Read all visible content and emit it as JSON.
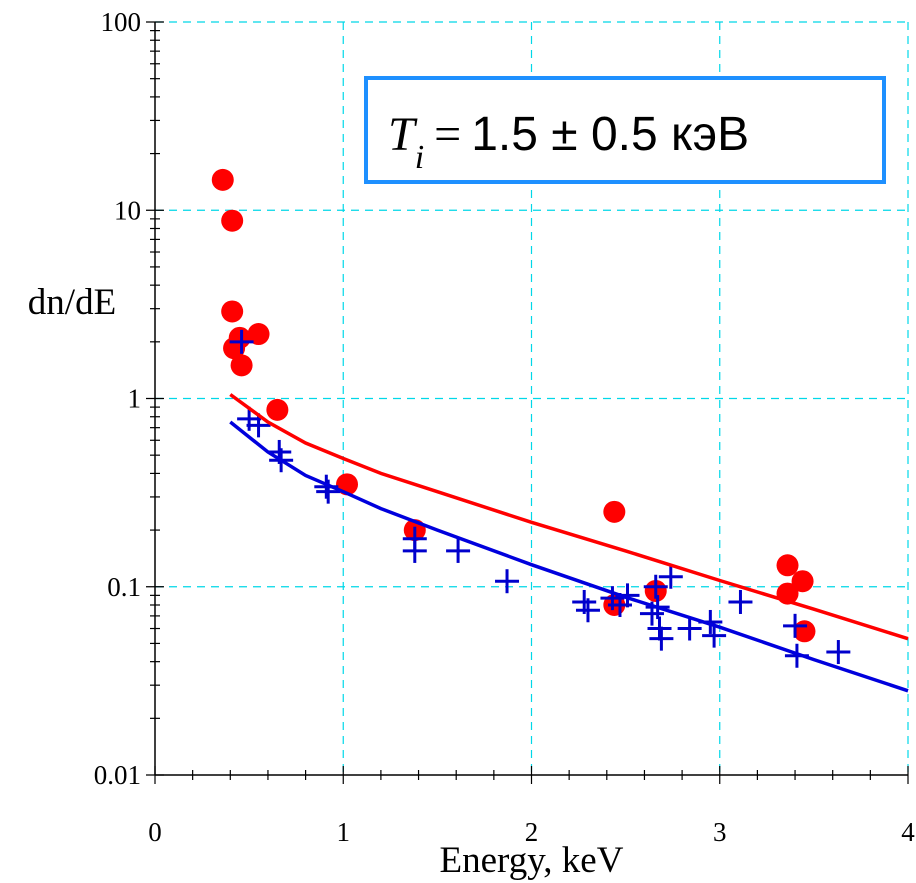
{
  "chart_data": {
    "type": "scatter",
    "xlabel": "Energy, keV",
    "ylabel": "dn/dE",
    "xlim": [
      0,
      4
    ],
    "ylim": [
      0.01,
      100
    ],
    "yscale": "log",
    "x_ticks": [
      0,
      1,
      2,
      3,
      4
    ],
    "x_tick_labels": [
      "0",
      "1",
      "2",
      "3",
      "4"
    ],
    "y_ticks": [
      0.01,
      0.1,
      1,
      10,
      100
    ],
    "y_tick_labels": [
      "0.01",
      "0.1",
      "1",
      "10",
      "100"
    ],
    "grid": true,
    "annotation": {
      "symbol": "T",
      "subscript": "i",
      "equals": "=",
      "value_text": "1.5 ± 0.5 кэВ"
    },
    "series": [
      {
        "marker": "circle",
        "color": "#ff0000",
        "points": [
          [
            0.36,
            14.5
          ],
          [
            0.41,
            8.8
          ],
          [
            0.41,
            2.9
          ],
          [
            0.42,
            1.85
          ],
          [
            0.45,
            2.1
          ],
          [
            0.46,
            1.5
          ],
          [
            0.55,
            2.2
          ],
          [
            0.65,
            0.87
          ],
          [
            1.02,
            0.35
          ],
          [
            1.38,
            0.2
          ],
          [
            2.44,
            0.25
          ],
          [
            2.44,
            0.08
          ],
          [
            2.66,
            0.095
          ],
          [
            3.36,
            0.13
          ],
          [
            3.36,
            0.092
          ],
          [
            3.44,
            0.107
          ],
          [
            3.45,
            0.058
          ]
        ]
      },
      {
        "marker": "plus",
        "color": "#0000cc",
        "points": [
          [
            0.46,
            2.0
          ],
          [
            0.5,
            0.78
          ],
          [
            0.55,
            0.72
          ],
          [
            0.66,
            0.52
          ],
          [
            0.67,
            0.47
          ],
          [
            0.91,
            0.34
          ],
          [
            0.92,
            0.32
          ],
          [
            1.38,
            0.18
          ],
          [
            1.38,
            0.155
          ],
          [
            1.61,
            0.155
          ],
          [
            1.87,
            0.107
          ],
          [
            2.28,
            0.083
          ],
          [
            2.3,
            0.075
          ],
          [
            2.43,
            0.087
          ],
          [
            2.47,
            0.08
          ],
          [
            2.51,
            0.09
          ],
          [
            2.64,
            0.072
          ],
          [
            2.66,
            0.1
          ],
          [
            2.67,
            0.078
          ],
          [
            2.68,
            0.06
          ],
          [
            2.69,
            0.053
          ],
          [
            2.74,
            0.113
          ],
          [
            2.84,
            0.06
          ],
          [
            2.95,
            0.065
          ],
          [
            2.97,
            0.055
          ],
          [
            3.11,
            0.083
          ],
          [
            3.4,
            0.062
          ],
          [
            3.41,
            0.043
          ],
          [
            3.63,
            0.045
          ]
        ]
      },
      {
        "marker": "line",
        "color": "#ff0000",
        "points": [
          [
            0.4,
            1.05
          ],
          [
            0.6,
            0.75
          ],
          [
            0.8,
            0.58
          ],
          [
            1.0,
            0.48
          ],
          [
            1.2,
            0.4
          ],
          [
            1.5,
            0.32
          ],
          [
            2.0,
            0.22
          ],
          [
            2.5,
            0.155
          ],
          [
            3.0,
            0.108
          ],
          [
            3.5,
            0.076
          ],
          [
            4.0,
            0.053
          ]
        ]
      },
      {
        "marker": "line",
        "color": "#0000dd",
        "points": [
          [
            0.4,
            0.75
          ],
          [
            0.6,
            0.52
          ],
          [
            0.8,
            0.39
          ],
          [
            1.0,
            0.32
          ],
          [
            1.2,
            0.26
          ],
          [
            1.5,
            0.2
          ],
          [
            2.0,
            0.131
          ],
          [
            2.5,
            0.088
          ],
          [
            3.0,
            0.061
          ],
          [
            3.5,
            0.041
          ],
          [
            4.0,
            0.028
          ]
        ]
      }
    ]
  }
}
